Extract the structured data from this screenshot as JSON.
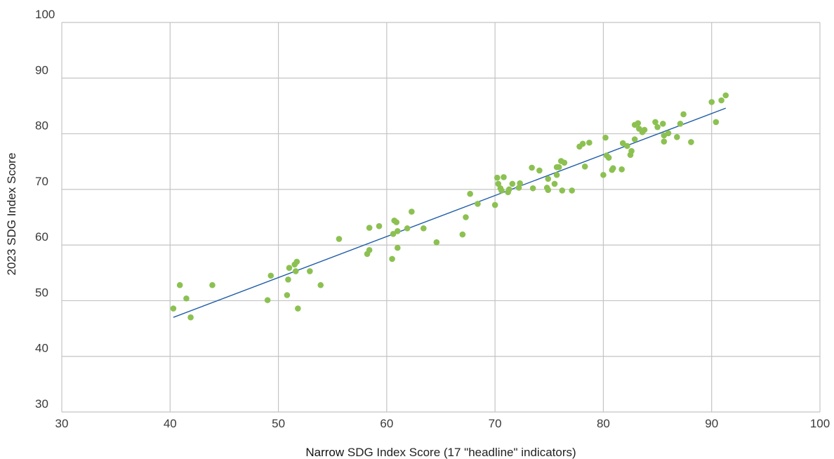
{
  "chart_data": {
    "type": "scatter",
    "title": "",
    "xlabel": "Narrow SDG Index Score (17 \"headline\" indicators)",
    "xlabel_lead": "Narrow",
    "xlabel_rest": " SDG Index Score (17 \"headline\" indicators)",
    "ylabel": "2023 SDG Index Score",
    "xlim": [
      30,
      100
    ],
    "ylim": [
      30,
      100
    ],
    "xticks": [
      30,
      40,
      50,
      60,
      70,
      80,
      90,
      100
    ],
    "yticks": [
      30,
      40,
      50,
      60,
      70,
      80,
      90,
      100
    ],
    "grid": true,
    "colors": {
      "points": "#8cc152",
      "trendline": "#1f5ca8",
      "grid": "#c4c4c4"
    },
    "series": [
      {
        "values": [
          [
            40.3,
            48.6
          ],
          [
            40.9,
            52.8
          ],
          [
            41.5,
            50.4
          ],
          [
            41.9,
            47.0
          ],
          [
            43.9,
            52.8
          ],
          [
            49.0,
            50.1
          ],
          [
            49.3,
            54.5
          ],
          [
            50.8,
            51.0
          ],
          [
            50.9,
            53.8
          ],
          [
            51.0,
            55.9
          ],
          [
            51.5,
            56.5
          ],
          [
            51.7,
            57.0
          ],
          [
            51.6,
            55.3
          ],
          [
            51.8,
            48.6
          ],
          [
            52.9,
            55.3
          ],
          [
            53.9,
            52.8
          ],
          [
            55.6,
            61.1
          ],
          [
            58.2,
            58.4
          ],
          [
            58.4,
            63.1
          ],
          [
            58.4,
            59.1
          ],
          [
            59.3,
            63.4
          ],
          [
            60.5,
            57.5
          ],
          [
            60.6,
            62.0
          ],
          [
            60.7,
            64.4
          ],
          [
            60.9,
            64.1
          ],
          [
            61.0,
            59.5
          ],
          [
            61.0,
            62.5
          ],
          [
            61.9,
            63.0
          ],
          [
            62.3,
            66.0
          ],
          [
            63.4,
            63.0
          ],
          [
            64.6,
            60.5
          ],
          [
            67.0,
            61.9
          ],
          [
            67.3,
            65.0
          ],
          [
            67.7,
            69.2
          ],
          [
            68.4,
            67.4
          ],
          [
            70.0,
            67.2
          ],
          [
            70.2,
            72.1
          ],
          [
            70.3,
            71.0
          ],
          [
            70.5,
            70.2
          ],
          [
            70.6,
            69.8
          ],
          [
            70.8,
            72.2
          ],
          [
            71.2,
            69.5
          ],
          [
            71.3,
            70.0
          ],
          [
            71.6,
            71.0
          ],
          [
            72.2,
            70.3
          ],
          [
            72.3,
            71.1
          ],
          [
            73.4,
            73.9
          ],
          [
            73.5,
            70.2
          ],
          [
            74.1,
            73.4
          ],
          [
            74.8,
            70.3
          ],
          [
            74.9,
            71.9
          ],
          [
            74.9,
            69.9
          ],
          [
            75.5,
            71.0
          ],
          [
            75.7,
            74.0
          ],
          [
            75.7,
            72.6
          ],
          [
            75.9,
            74.0
          ],
          [
            76.1,
            75.1
          ],
          [
            76.2,
            69.8
          ],
          [
            76.4,
            74.8
          ],
          [
            77.1,
            69.8
          ],
          [
            77.8,
            77.7
          ],
          [
            78.1,
            78.2
          ],
          [
            78.3,
            74.1
          ],
          [
            78.7,
            78.4
          ],
          [
            80.0,
            72.6
          ],
          [
            80.2,
            79.3
          ],
          [
            80.3,
            76.1
          ],
          [
            80.5,
            75.7
          ],
          [
            80.8,
            73.5
          ],
          [
            80.9,
            73.8
          ],
          [
            81.7,
            73.6
          ],
          [
            81.8,
            78.3
          ],
          [
            82.2,
            77.8
          ],
          [
            82.5,
            76.2
          ],
          [
            82.6,
            76.9
          ],
          [
            82.9,
            79.0
          ],
          [
            82.9,
            81.6
          ],
          [
            83.2,
            81.9
          ],
          [
            83.3,
            80.9
          ],
          [
            83.6,
            80.3
          ],
          [
            83.8,
            80.7
          ],
          [
            84.8,
            82.1
          ],
          [
            85.0,
            81.2
          ],
          [
            85.5,
            81.8
          ],
          [
            85.6,
            78.6
          ],
          [
            85.6,
            79.7
          ],
          [
            86.0,
            80.1
          ],
          [
            86.8,
            79.4
          ],
          [
            87.1,
            81.8
          ],
          [
            87.4,
            83.5
          ],
          [
            88.1,
            78.5
          ],
          [
            90.0,
            85.7
          ],
          [
            90.4,
            82.1
          ],
          [
            90.9,
            86.0
          ],
          [
            91.3,
            86.9
          ]
        ]
      }
    ],
    "trendline": {
      "x": [
        40.3,
        91.3
      ],
      "y": [
        47.0,
        84.6
      ]
    }
  }
}
